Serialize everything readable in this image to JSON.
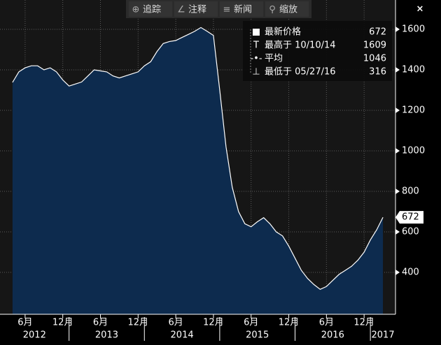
{
  "toolbar": {
    "buttons": [
      "追踪",
      "注释",
      "新闻",
      "缩放"
    ],
    "close": "×"
  },
  "chart_data": {
    "type": "area",
    "x": [
      "2012-04",
      "2012-05",
      "2012-06",
      "2012-07",
      "2012-08",
      "2012-09",
      "2012-10",
      "2012-11",
      "2012-12",
      "2013-01",
      "2013-02",
      "2013-03",
      "2013-04",
      "2013-05",
      "2013-06",
      "2013-07",
      "2013-08",
      "2013-09",
      "2013-10",
      "2013-11",
      "2013-12",
      "2014-01",
      "2014-02",
      "2014-03",
      "2014-04",
      "2014-05",
      "2014-06",
      "2014-07",
      "2014-08",
      "2014-09",
      "2014-10",
      "2014-11",
      "2014-12",
      "2015-01",
      "2015-02",
      "2015-03",
      "2015-04",
      "2015-05",
      "2015-06",
      "2015-07",
      "2015-08",
      "2015-09",
      "2015-10",
      "2015-11",
      "2015-12",
      "2016-01",
      "2016-02",
      "2016-03",
      "2016-04",
      "2016-05",
      "2016-06",
      "2016-07",
      "2016-08",
      "2016-09",
      "2016-10",
      "2016-11",
      "2016-12",
      "2017-01",
      "2017-02",
      "2017-03"
    ],
    "series": [
      {
        "color": "#ffffff",
        "fill": "#0d2b4e",
        "values": [
          1338,
          1390,
          1410,
          1420,
          1420,
          1400,
          1410,
          1390,
          1350,
          1320,
          1330,
          1340,
          1370,
          1400,
          1395,
          1390,
          1370,
          1360,
          1370,
          1380,
          1390,
          1420,
          1440,
          1490,
          1530,
          1540,
          1545,
          1560,
          1575,
          1590,
          1609,
          1590,
          1570,
          1300,
          1020,
          820,
          700,
          640,
          625,
          650,
          670,
          640,
          600,
          580,
          530,
          470,
          410,
          370,
          340,
          316,
          330,
          360,
          390,
          410,
          430,
          460,
          500,
          560,
          610,
          672
        ]
      }
    ],
    "xlim": [
      "2012-02",
      "2017-05"
    ],
    "xticks": [
      {
        "value": "2012-06",
        "label": "6月"
      },
      {
        "value": "2012-12",
        "label": "12月"
      },
      {
        "value": "2013-06",
        "label": "6月"
      },
      {
        "value": "2013-12",
        "label": "12月"
      },
      {
        "value": "2014-06",
        "label": "6月"
      },
      {
        "value": "2014-12",
        "label": "12月"
      },
      {
        "value": "2015-06",
        "label": "6月"
      },
      {
        "value": "2015-12",
        "label": "12月"
      },
      {
        "value": "2016-06",
        "label": "6月"
      },
      {
        "value": "2016-12",
        "label": "12月"
      }
    ],
    "year_labels": [
      "2012",
      "2013",
      "2014",
      "2015",
      "2016",
      "2017"
    ],
    "ylim": [
      193,
      1745
    ],
    "yticks": [
      400,
      600,
      800,
      1000,
      1200,
      1400,
      1600
    ],
    "grid": true,
    "stats": [
      {
        "label": "最新价格",
        "value": 672
      },
      {
        "label": "最高于 10/10/14",
        "value": 1609
      },
      {
        "label": "平均",
        "value": 1046
      },
      {
        "label": "最低于 05/27/16",
        "value": 316
      }
    ]
  }
}
